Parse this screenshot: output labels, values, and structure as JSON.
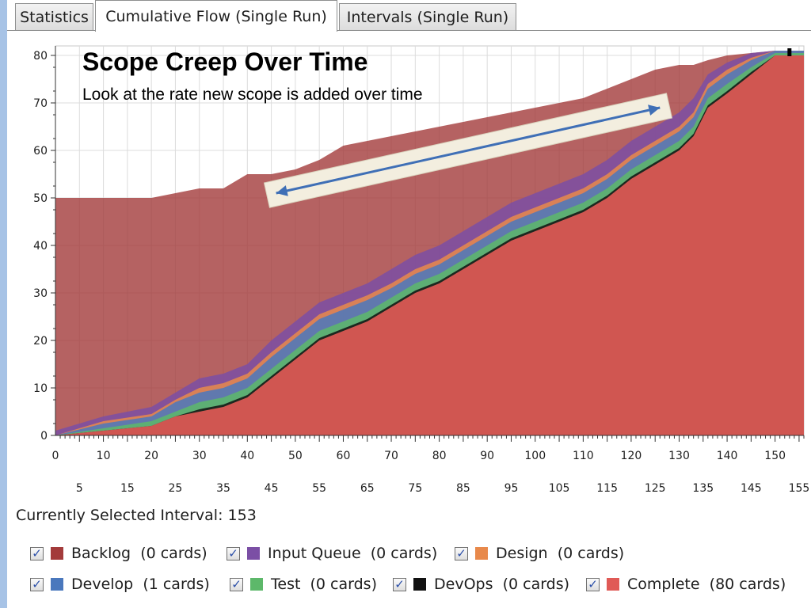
{
  "tabs": [
    {
      "label": "Statistics",
      "active": false
    },
    {
      "label": "Cumulative Flow (Single Run)",
      "active": true
    },
    {
      "label": "Intervals (Single Run)",
      "active": false
    }
  ],
  "selected_interval_text": "Currently Selected Interval: 153",
  "legend": [
    {
      "name": "Backlog",
      "count": "(0 cards)",
      "color": "#a33b3b",
      "checked": true,
      "check_glyph": "✓"
    },
    {
      "name": "Input Queue",
      "count": "(0 cards)",
      "color": "#7b4fa5",
      "checked": true,
      "check_glyph": "✓"
    },
    {
      "name": "Design",
      "count": "(0 cards)",
      "color": "#e8894b",
      "checked": true,
      "check_glyph": "✓"
    },
    {
      "name": "Develop",
      "count": "(1 cards)",
      "color": "#4a78bd",
      "checked": true,
      "check_glyph": "✓"
    },
    {
      "name": "Test",
      "count": "(0 cards)",
      "color": "#5db86a",
      "checked": true,
      "check_glyph": "✓"
    },
    {
      "name": "DevOps",
      "count": "(0 cards)",
      "color": "#111111",
      "checked": true,
      "check_glyph": "✓"
    },
    {
      "name": "Complete",
      "count": "(80 cards)",
      "color": "#e05a56",
      "checked": true,
      "check_glyph": "✓"
    }
  ],
  "chart_data": {
    "type": "area",
    "stacking": "cumulative",
    "title": "Scope Creep Over Time",
    "subtitle": "Look at the rate new scope is added over time",
    "xlim": [
      0,
      156
    ],
    "ylim": [
      0,
      82
    ],
    "y_ticks": [
      0,
      10,
      20,
      30,
      40,
      50,
      60,
      70,
      80
    ],
    "x_ticks_major": [
      0,
      10,
      20,
      30,
      40,
      50,
      60,
      70,
      80,
      90,
      100,
      110,
      120,
      130,
      140,
      150
    ],
    "x_ticks_minor": [
      5,
      15,
      25,
      35,
      45,
      55,
      65,
      75,
      85,
      95,
      105,
      115,
      125,
      135,
      145,
      155
    ],
    "selected_interval": 153,
    "annotation": {
      "type": "double-arrow",
      "description": "scope growth trend",
      "from": [
        46,
        51
      ],
      "to": [
        126,
        69
      ]
    },
    "x": [
      0,
      10,
      20,
      25,
      30,
      35,
      40,
      45,
      50,
      55,
      60,
      65,
      70,
      75,
      80,
      85,
      90,
      95,
      100,
      105,
      110,
      115,
      120,
      125,
      130,
      133,
      136,
      140,
      145,
      150,
      152,
      153,
      156
    ],
    "series": [
      {
        "name": "Complete",
        "color": "#e05a56",
        "values": [
          0,
          1,
          2,
          4,
          5,
          6,
          8,
          12,
          16,
          20,
          22,
          24,
          27,
          30,
          32,
          35,
          38,
          41,
          43,
          45,
          47,
          50,
          54,
          57,
          60,
          63,
          69,
          72,
          76,
          80,
          80,
          80,
          80
        ]
      },
      {
        "name": "DevOps",
        "color": "#111111",
        "values": [
          0,
          1,
          2,
          4,
          5.5,
          6.5,
          8.5,
          12.5,
          16.5,
          20.5,
          22.5,
          24.5,
          27.5,
          30.5,
          32.5,
          35.5,
          38.5,
          41.5,
          43.5,
          45.5,
          47.5,
          50.5,
          54.5,
          57.5,
          60.5,
          63.5,
          69.5,
          72.5,
          76.5,
          80,
          80,
          80,
          80
        ]
      },
      {
        "name": "Test",
        "color": "#5db86a",
        "values": [
          0,
          1.5,
          3,
          5,
          7,
          8,
          10,
          14,
          18,
          22,
          24,
          26,
          29,
          32,
          34,
          37,
          40,
          43,
          45,
          47,
          49,
          52,
          56,
          59,
          62,
          65,
          71,
          74,
          77.5,
          80.5,
          80.5,
          80.5,
          80.5
        ]
      },
      {
        "name": "Develop",
        "color": "#4a78bd",
        "values": [
          0,
          2.5,
          4,
          7,
          9,
          10,
          12,
          16.5,
          20.5,
          24.5,
          26.5,
          28.5,
          31,
          34,
          36,
          39,
          42,
          45,
          47,
          49,
          51,
          54,
          58,
          61,
          64,
          67,
          73,
          76,
          79,
          81,
          81,
          81,
          81
        ]
      },
      {
        "name": "Design",
        "color": "#e8894b",
        "values": [
          0,
          3,
          4.5,
          7.5,
          10,
          11,
          13,
          17.5,
          21.5,
          25.5,
          27.5,
          29.5,
          32,
          35,
          37,
          40,
          43,
          46,
          48,
          50,
          52,
          55,
          59,
          62,
          65,
          68,
          74,
          77,
          79.5,
          81,
          81,
          81,
          81
        ]
      },
      {
        "name": "Input Queue",
        "color": "#7b4fa5",
        "values": [
          1,
          4,
          6,
          9,
          12,
          13,
          15,
          20,
          24,
          28,
          30,
          32,
          35,
          38,
          40,
          43,
          46,
          49,
          51,
          53,
          55,
          58,
          62,
          65,
          68,
          71,
          76,
          78.5,
          80.5,
          81,
          81,
          81,
          81
        ]
      },
      {
        "name": "Backlog",
        "color": "#a33b3b",
        "values": [
          50,
          50,
          50,
          51,
          52,
          52,
          55,
          55,
          56,
          58,
          61,
          62,
          63,
          64,
          65,
          66,
          67,
          68,
          69,
          70,
          71,
          73,
          75,
          77,
          78,
          78,
          79,
          80,
          80.5,
          81,
          81,
          81,
          81
        ]
      }
    ]
  }
}
